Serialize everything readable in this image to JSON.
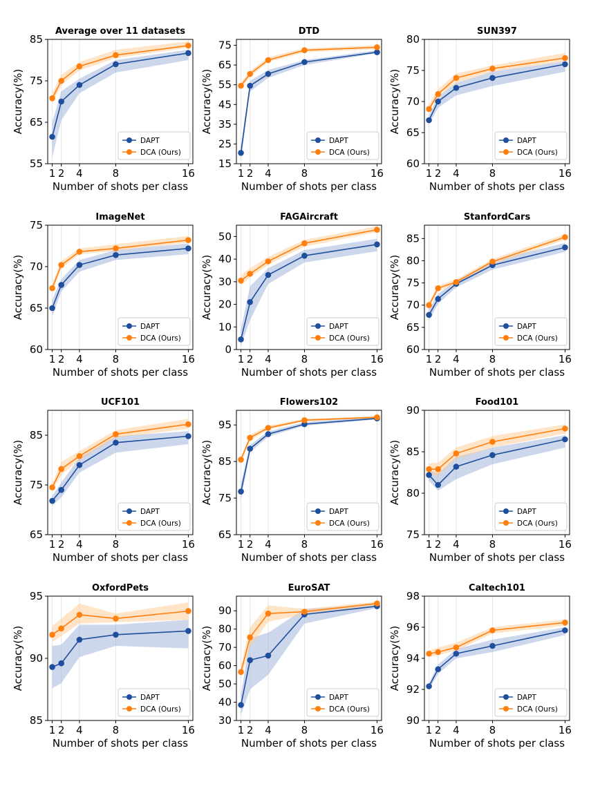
{
  "figure": {
    "series_names": [
      "DAPT",
      "DCA (Ours)"
    ],
    "colors": {
      "dapt": "#1f4e9c",
      "dca": "#ff7f0e",
      "dapt_band": "#8fa6d4",
      "dca_band": "#ffc98f",
      "grid": "#e6e6e6"
    }
  },
  "chart_data": [
    {
      "type": "line",
      "title": "Average over 11 datasets",
      "xlabel": "Number of shots per class",
      "ylabel": "Accuracy(%)",
      "x": [
        1,
        2,
        4,
        8,
        16
      ],
      "xticks": [
        "1",
        "2",
        "4",
        "8",
        "16"
      ],
      "ylim": [
        55,
        85
      ],
      "yticks": [
        55,
        65,
        75,
        85
      ],
      "legend": "lower-right",
      "series": [
        {
          "name": "DAPT",
          "values": [
            61.5,
            70.0,
            74.0,
            79.0,
            81.7
          ],
          "band_low": [
            56.5,
            65.5,
            72.0,
            77.0,
            80.0
          ],
          "band_high": [
            65.0,
            72.5,
            75.5,
            80.0,
            82.5
          ]
        },
        {
          "name": "DCA (Ours)",
          "values": [
            70.8,
            75.0,
            78.5,
            81.2,
            83.5
          ],
          "band_low": [
            69.5,
            74.0,
            77.5,
            80.5,
            83.0
          ],
          "band_high": [
            72.0,
            76.5,
            79.5,
            82.5,
            84.5
          ]
        }
      ]
    },
    {
      "type": "line",
      "title": "DTD",
      "xlabel": "Number of shots per class",
      "ylabel": "Accuracy(%)",
      "x": [
        1,
        2,
        4,
        8,
        16
      ],
      "xticks": [
        "1",
        "2",
        "4",
        "8",
        "16"
      ],
      "ylim": [
        15,
        78
      ],
      "yticks": [
        15,
        25,
        35,
        45,
        55,
        65,
        75
      ],
      "legend": "lower-right",
      "series": [
        {
          "name": "DAPT",
          "values": [
            20.5,
            54.5,
            60.5,
            66.5,
            71.5
          ],
          "band_low": [
            17.0,
            51.5,
            58.5,
            65.0,
            71.0
          ],
          "band_high": [
            24.0,
            57.0,
            62.5,
            67.5,
            72.5
          ]
        },
        {
          "name": "DCA (Ours)",
          "values": [
            54.5,
            60.5,
            67.5,
            72.5,
            74.0
          ],
          "band_low": [
            53.0,
            59.0,
            66.5,
            71.5,
            73.0
          ],
          "band_high": [
            56.0,
            62.0,
            69.0,
            73.5,
            75.0
          ]
        }
      ]
    },
    {
      "type": "line",
      "title": "SUN397",
      "xlabel": "Number of shots per class",
      "ylabel": "Accuracy(%)",
      "x": [
        1,
        2,
        4,
        8,
        16
      ],
      "xticks": [
        "1",
        "2",
        "4",
        "8",
        "16"
      ],
      "ylim": [
        60,
        80
      ],
      "yticks": [
        60,
        65,
        70,
        75,
        80
      ],
      "legend": "lower-right",
      "series": [
        {
          "name": "DAPT",
          "values": [
            67.0,
            70.0,
            72.2,
            73.8,
            76.0
          ],
          "band_low": [
            66.3,
            69.0,
            71.0,
            72.5,
            74.8
          ],
          "band_high": [
            67.8,
            70.8,
            73.0,
            74.8,
            76.5
          ]
        },
        {
          "name": "DCA (Ours)",
          "values": [
            68.8,
            71.2,
            73.8,
            75.3,
            77.0
          ],
          "band_low": [
            68.3,
            70.8,
            73.0,
            74.8,
            76.5
          ],
          "band_high": [
            69.5,
            72.0,
            74.5,
            75.8,
            77.8
          ]
        }
      ]
    },
    {
      "type": "line",
      "title": "ImageNet",
      "xlabel": "Number of shots per class",
      "ylabel": "Accuracy(%)",
      "x": [
        1,
        2,
        4,
        8,
        16
      ],
      "xticks": [
        "1",
        "2",
        "4",
        "8",
        "16"
      ],
      "ylim": [
        60,
        75
      ],
      "yticks": [
        60,
        65,
        70,
        75
      ],
      "legend": "lower-right",
      "series": [
        {
          "name": "DAPT",
          "values": [
            65.0,
            67.8,
            70.2,
            71.4,
            72.2
          ],
          "band_low": [
            64.0,
            67.0,
            69.4,
            70.8,
            71.5
          ],
          "band_high": [
            66.0,
            68.5,
            70.8,
            72.0,
            72.8
          ]
        },
        {
          "name": "DCA (Ours)",
          "values": [
            67.4,
            70.2,
            71.8,
            72.2,
            73.2
          ],
          "band_low": [
            67.0,
            69.8,
            71.5,
            71.9,
            72.9
          ],
          "band_high": [
            67.9,
            70.7,
            72.2,
            72.7,
            73.7
          ]
        }
      ]
    },
    {
      "type": "line",
      "title": "FAGAircraft",
      "xlabel": "Number of shots per class",
      "ylabel": "Accuracy(%)",
      "x": [
        1,
        2,
        4,
        8,
        16
      ],
      "xticks": [
        "1",
        "2",
        "4",
        "8",
        "16"
      ],
      "ylim": [
        0,
        55
      ],
      "yticks": [
        0,
        10,
        20,
        30,
        40,
        50
      ],
      "legend": "lower-right",
      "series": [
        {
          "name": "DAPT",
          "values": [
            4.5,
            21.0,
            33.0,
            41.5,
            46.5
          ],
          "band_low": [
            1.5,
            13.0,
            29.0,
            38.5,
            43.5
          ],
          "band_high": [
            9.0,
            28.0,
            36.0,
            44.0,
            49.0
          ]
        },
        {
          "name": "DCA (Ours)",
          "values": [
            30.5,
            33.5,
            39.0,
            47.0,
            53.0
          ],
          "band_low": [
            28.5,
            32.0,
            37.5,
            45.5,
            52.0
          ],
          "band_high": [
            33.0,
            36.0,
            41.0,
            48.5,
            54.5
          ]
        }
      ]
    },
    {
      "type": "line",
      "title": "StanfordCars",
      "xlabel": "Number of shots per class",
      "ylabel": "Accuracy(%)",
      "x": [
        1,
        2,
        4,
        8,
        16
      ],
      "xticks": [
        "1",
        "2",
        "4",
        "8",
        "16"
      ],
      "ylim": [
        60,
        88
      ],
      "yticks": [
        60,
        65,
        70,
        75,
        80,
        85
      ],
      "legend": "lower-right",
      "series": [
        {
          "name": "DAPT",
          "values": [
            67.8,
            71.4,
            74.8,
            79.0,
            83.0
          ],
          "band_low": [
            66.5,
            70.3,
            74.0,
            78.0,
            82.0
          ],
          "band_high": [
            69.0,
            72.5,
            75.5,
            80.0,
            84.0
          ]
        },
        {
          "name": "DCA (Ours)",
          "values": [
            70.0,
            73.8,
            75.2,
            79.8,
            85.3
          ],
          "band_low": [
            69.3,
            73.2,
            74.6,
            79.2,
            84.7
          ],
          "band_high": [
            70.8,
            74.4,
            75.8,
            80.4,
            86.0
          ]
        }
      ]
    },
    {
      "type": "line",
      "title": "UCF101",
      "xlabel": "Number of shots per class",
      "ylabel": "Accuracy(%)",
      "x": [
        1,
        2,
        4,
        8,
        16
      ],
      "xticks": [
        "1",
        "2",
        "4",
        "8",
        "16"
      ],
      "ylim": [
        65,
        90
      ],
      "yticks": [
        65,
        75,
        85
      ],
      "legend": "lower-right",
      "series": [
        {
          "name": "DAPT",
          "values": [
            71.8,
            74.0,
            79.0,
            83.5,
            84.8
          ],
          "band_low": [
            70.8,
            72.5,
            77.5,
            81.5,
            83.2
          ],
          "band_high": [
            72.8,
            75.5,
            80.5,
            84.8,
            85.8
          ]
        },
        {
          "name": "DCA (Ours)",
          "values": [
            74.5,
            78.2,
            80.8,
            85.2,
            87.2
          ],
          "band_low": [
            73.8,
            77.0,
            80.0,
            84.5,
            86.3
          ],
          "band_high": [
            75.2,
            79.6,
            81.8,
            86.0,
            88.3
          ]
        }
      ]
    },
    {
      "type": "line",
      "title": "Flowers102",
      "xlabel": "Number of shots per class",
      "ylabel": "Accuracy(%)",
      "x": [
        1,
        2,
        4,
        8,
        16
      ],
      "xticks": [
        "1",
        "2",
        "4",
        "8",
        "16"
      ],
      "ylim": [
        65,
        99
      ],
      "yticks": [
        65,
        75,
        85,
        95
      ],
      "legend": "lower-right",
      "series": [
        {
          "name": "DAPT",
          "values": [
            76.8,
            88.5,
            92.5,
            95.2,
            96.8
          ],
          "band_low": [
            74.5,
            87.5,
            91.8,
            94.8,
            96.5
          ],
          "band_high": [
            79.0,
            89.5,
            93.2,
            95.8,
            97.2
          ]
        },
        {
          "name": "DCA (Ours)",
          "values": [
            85.5,
            91.5,
            94.2,
            96.3,
            97.1
          ],
          "band_low": [
            84.8,
            90.8,
            93.7,
            96.0,
            96.9
          ],
          "band_high": [
            86.3,
            92.3,
            94.8,
            96.7,
            97.4
          ]
        }
      ]
    },
    {
      "type": "line",
      "title": "Food101",
      "xlabel": "Number of shots per class",
      "ylabel": "Accuracy(%)",
      "x": [
        1,
        2,
        4,
        8,
        16
      ],
      "xticks": [
        "1",
        "2",
        "4",
        "8",
        "16"
      ],
      "ylim": [
        75,
        90
      ],
      "yticks": [
        75,
        80,
        85,
        90
      ],
      "legend": "lower-right",
      "series": [
        {
          "name": "DAPT",
          "values": [
            82.2,
            81.0,
            83.2,
            84.6,
            86.5
          ],
          "band_low": [
            81.5,
            80.3,
            81.7,
            83.5,
            85.5
          ],
          "band_high": [
            82.8,
            82.4,
            84.4,
            85.5,
            87.0
          ]
        },
        {
          "name": "DCA (Ours)",
          "values": [
            82.9,
            82.9,
            84.8,
            86.2,
            87.8
          ],
          "band_low": [
            82.3,
            82.1,
            84.1,
            85.5,
            87.2
          ],
          "band_high": [
            83.6,
            83.7,
            85.5,
            86.9,
            88.3
          ]
        }
      ]
    },
    {
      "type": "line",
      "title": "OxfordPets",
      "xlabel": "Number of shots per class",
      "ylabel": "Accuracy(%)",
      "x": [
        1,
        2,
        4,
        8,
        16
      ],
      "xticks": [
        "1",
        "2",
        "4",
        "8",
        "16"
      ],
      "ylim": [
        85,
        95
      ],
      "yticks": [
        85,
        90,
        95
      ],
      "legend": "lower-right",
      "series": [
        {
          "name": "DAPT",
          "values": [
            89.3,
            89.6,
            91.5,
            91.9,
            92.2
          ],
          "band_low": [
            87.6,
            88.0,
            90.1,
            91.0,
            90.8
          ],
          "band_high": [
            91.0,
            91.1,
            92.7,
            92.7,
            93.1
          ]
        },
        {
          "name": "DCA (Ours)",
          "values": [
            91.9,
            92.4,
            93.5,
            93.2,
            93.8
          ],
          "band_low": [
            91.3,
            91.8,
            92.8,
            92.9,
            93.1
          ],
          "band_high": [
            92.6,
            93.2,
            94.4,
            93.6,
            94.5
          ]
        }
      ]
    },
    {
      "type": "line",
      "title": "EuroSAT",
      "xlabel": "Number of shots per class",
      "ylabel": "Accuracy(%)",
      "x": [
        1,
        2,
        4,
        8,
        16
      ],
      "xticks": [
        "1",
        "2",
        "4",
        "8",
        "16"
      ],
      "ylim": [
        30,
        98
      ],
      "yticks": [
        30,
        40,
        50,
        60,
        70,
        80,
        90
      ],
      "legend": "lower-right",
      "series": [
        {
          "name": "DAPT",
          "values": [
            38.5,
            63.0,
            65.5,
            88.0,
            92.5
          ],
          "band_low": [
            33.0,
            47.0,
            55.0,
            83.0,
            91.5
          ],
          "band_high": [
            44.0,
            75.0,
            78.0,
            91.0,
            93.5
          ]
        },
        {
          "name": "DCA (Ours)",
          "values": [
            56.5,
            75.5,
            88.5,
            89.5,
            94.0
          ],
          "band_low": [
            53.0,
            70.0,
            84.0,
            88.0,
            93.0
          ],
          "band_high": [
            60.0,
            81.0,
            93.0,
            91.0,
            95.0
          ]
        }
      ]
    },
    {
      "type": "line",
      "title": "Caltech101",
      "xlabel": "Number of shots per class",
      "ylabel": "Accuracy(%)",
      "x": [
        1,
        2,
        4,
        8,
        16
      ],
      "xticks": [
        "1",
        "2",
        "4",
        "8",
        "16"
      ],
      "ylim": [
        90,
        98
      ],
      "yticks": [
        90,
        92,
        94,
        96,
        98
      ],
      "legend": "lower-right",
      "series": [
        {
          "name": "DAPT",
          "values": [
            92.2,
            93.3,
            94.3,
            94.8,
            95.8
          ],
          "band_low": [
            92.0,
            93.0,
            94.0,
            94.4,
            95.5
          ],
          "band_high": [
            92.4,
            93.6,
            94.6,
            95.2,
            96.0
          ]
        },
        {
          "name": "DCA (Ours)",
          "values": [
            94.3,
            94.4,
            94.7,
            95.8,
            96.3
          ],
          "band_low": [
            94.1,
            94.2,
            94.5,
            95.6,
            96.1
          ],
          "band_high": [
            94.5,
            94.7,
            95.0,
            96.0,
            96.5
          ]
        }
      ]
    }
  ]
}
